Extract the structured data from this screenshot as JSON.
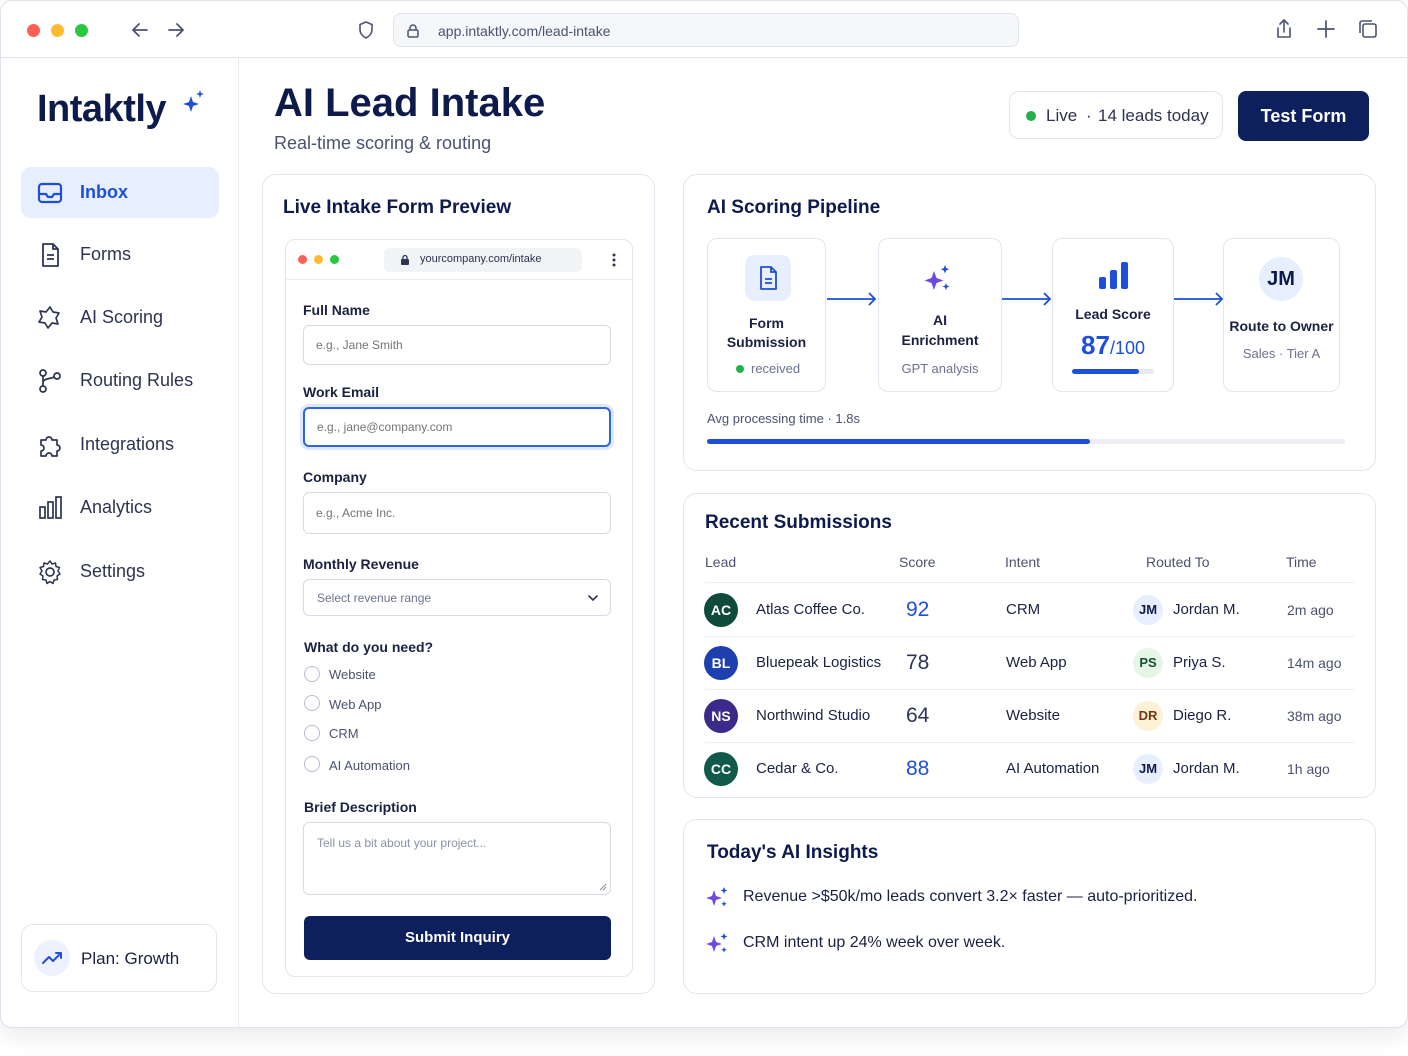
{
  "browser": {
    "url": "app.intaktly.com/lead-intake"
  },
  "sidebar": {
    "logo": "Intaktly",
    "items": [
      {
        "label": "Inbox",
        "icon": "inbox-icon"
      },
      {
        "label": "Forms",
        "icon": "document-icon"
      },
      {
        "label": "AI Scoring",
        "icon": "ai-scoring-icon"
      },
      {
        "label": "Routing Rules",
        "icon": "routing-icon"
      },
      {
        "label": "Integrations",
        "icon": "puzzle-icon"
      },
      {
        "label": "Analytics",
        "icon": "bar-chart-icon"
      },
      {
        "label": "Settings",
        "icon": "gear-icon"
      }
    ],
    "plan": "Plan: Growth"
  },
  "header": {
    "title": "AI Lead Intake",
    "subtitle": "Real-time scoring & routing",
    "live_status": "Live",
    "leads_today": "14 leads today",
    "test_button": "Test Form"
  },
  "form_preview": {
    "title": "Live Intake Form Preview",
    "url": "yourcompany.com/intake",
    "fields": {
      "full_name_label": "Full Name",
      "full_name_placeholder": "e.g., Jane Smith",
      "work_email_label": "Work Email",
      "work_email_placeholder": "e.g., jane@company.com",
      "company_label": "Company",
      "company_placeholder": "e.g., Acme Inc.",
      "revenue_label": "Monthly Revenue",
      "revenue_placeholder": "Select revenue range",
      "needs_label": "What do you need?",
      "needs_options": [
        "Website",
        "Web App",
        "CRM",
        "AI Automation"
      ],
      "description_label": "Brief Description",
      "description_placeholder": "Tell us a bit about your project..."
    },
    "submit_label": "Submit Inquiry"
  },
  "pipeline": {
    "title": "AI Scoring Pipeline",
    "stages": [
      {
        "title_l1": "Form",
        "title_l2": "Submission",
        "status": "received"
      },
      {
        "title_l1": "AI",
        "title_l2": "Enrichment",
        "status": "GPT analysis"
      },
      {
        "title": "Lead Score",
        "score": "87",
        "score_max": "/100",
        "score_fraction": 0.87
      },
      {
        "avatar": "JM",
        "title": "Route to Owner",
        "team": "Sales",
        "tier": "Tier A"
      }
    ],
    "avg_label": "Avg processing time",
    "avg_value": "1.8s",
    "avg_progress": 0.6
  },
  "submissions": {
    "title": "Recent Submissions",
    "columns": [
      "Lead",
      "Score",
      "Intent",
      "Routed To",
      "Time"
    ],
    "rows": [
      {
        "initials": "AC",
        "name": "Atlas Coffee Co.",
        "score": "92",
        "intent": "CRM",
        "owner_initials": "JM",
        "owner": "Jordan M.",
        "time": "2m ago",
        "color": "#0f4a3a"
      },
      {
        "initials": "BL",
        "name": "Bluepeak Logistics",
        "score": "78",
        "intent": "Web App",
        "owner_initials": "PS",
        "owner": "Priya S.",
        "time": "14m ago",
        "color": "#1e40af"
      },
      {
        "initials": "NS",
        "name": "Northwind Studio",
        "score": "64",
        "intent": "Website",
        "owner_initials": "DR",
        "owner": "Diego R.",
        "time": "38m ago",
        "color": "#3b2a8a"
      },
      {
        "initials": "CC",
        "name": "Cedar & Co.",
        "score": "88",
        "intent": "AI Automation",
        "owner_initials": "JM",
        "owner": "Jordan M.",
        "time": "1h ago",
        "color": "#0f5a4a"
      }
    ]
  },
  "insights": {
    "title": "Today's AI Insights",
    "items": [
      "Revenue >$50k/mo leads convert 3.2× faster — auto-prioritized.",
      "CRM intent up 24% week over week."
    ]
  },
  "colors": {
    "brand_navy": "#0d1f5c",
    "accent_blue": "#1d4fd8",
    "live_green": "#22b14c",
    "sparkle_purple": "#6d4ae0"
  }
}
